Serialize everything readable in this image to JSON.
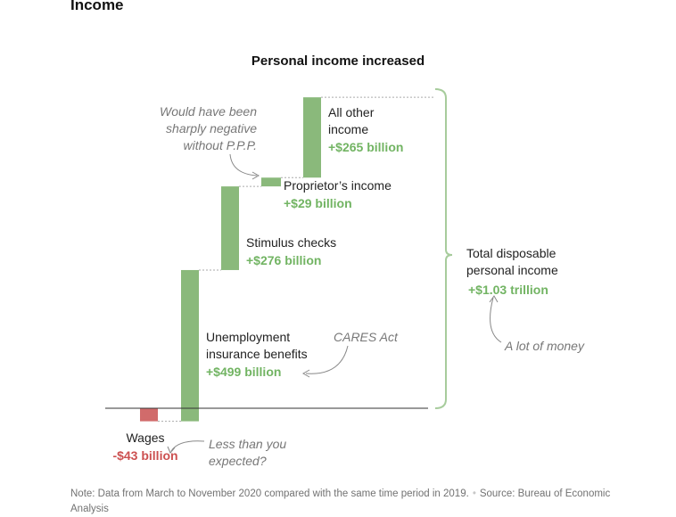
{
  "section_heading": "Income",
  "chart_data": {
    "type": "waterfall",
    "title": "Personal income increased",
    "categories": [
      "Wages",
      "Unemployment insurance benefits",
      "Stimulus checks",
      "Proprietor’s income",
      "All other income"
    ],
    "values": [
      -43,
      499,
      276,
      29,
      265
    ],
    "labels": [
      {
        "name_lines": [
          "Wages"
        ],
        "value": "-$43 billion"
      },
      {
        "name_lines": [
          "Unemployment",
          "insurance benefits"
        ],
        "value": "+$499 billion"
      },
      {
        "name_lines": [
          "Stimulus checks"
        ],
        "value": "+$276 billion"
      },
      {
        "name_lines": [
          "Proprietor’s income"
        ],
        "value": "+$29 billion"
      },
      {
        "name_lines": [
          "All other",
          "income"
        ],
        "value": "+$265 billion"
      }
    ],
    "total": {
      "name_lines": [
        "Total disposable",
        "personal income"
      ],
      "value": "+$1.03 trillion",
      "amount": 1026
    },
    "colors": {
      "positive": "#8ab97b",
      "negative": "#d16b6b",
      "positive_text": "#72b463",
      "negative_text": "#cc5050",
      "annotation": "#777777",
      "axis": "#333333",
      "connector": "#aaaaaa"
    },
    "annotations": [
      {
        "id": "ppp",
        "lines": [
          "Would have been",
          "sharply negative",
          "without P.P.P."
        ]
      },
      {
        "id": "cares",
        "lines": [
          "CARES Act"
        ]
      },
      {
        "id": "wages",
        "lines": [
          "Less than you",
          "expected?"
        ]
      },
      {
        "id": "total",
        "lines": [
          "A lot of money"
        ]
      }
    ]
  },
  "footnote": {
    "note": "Note: Data from March to November 2020 compared with the same time period in 2019.",
    "source": "Source: Bureau of Economic Analysis"
  }
}
